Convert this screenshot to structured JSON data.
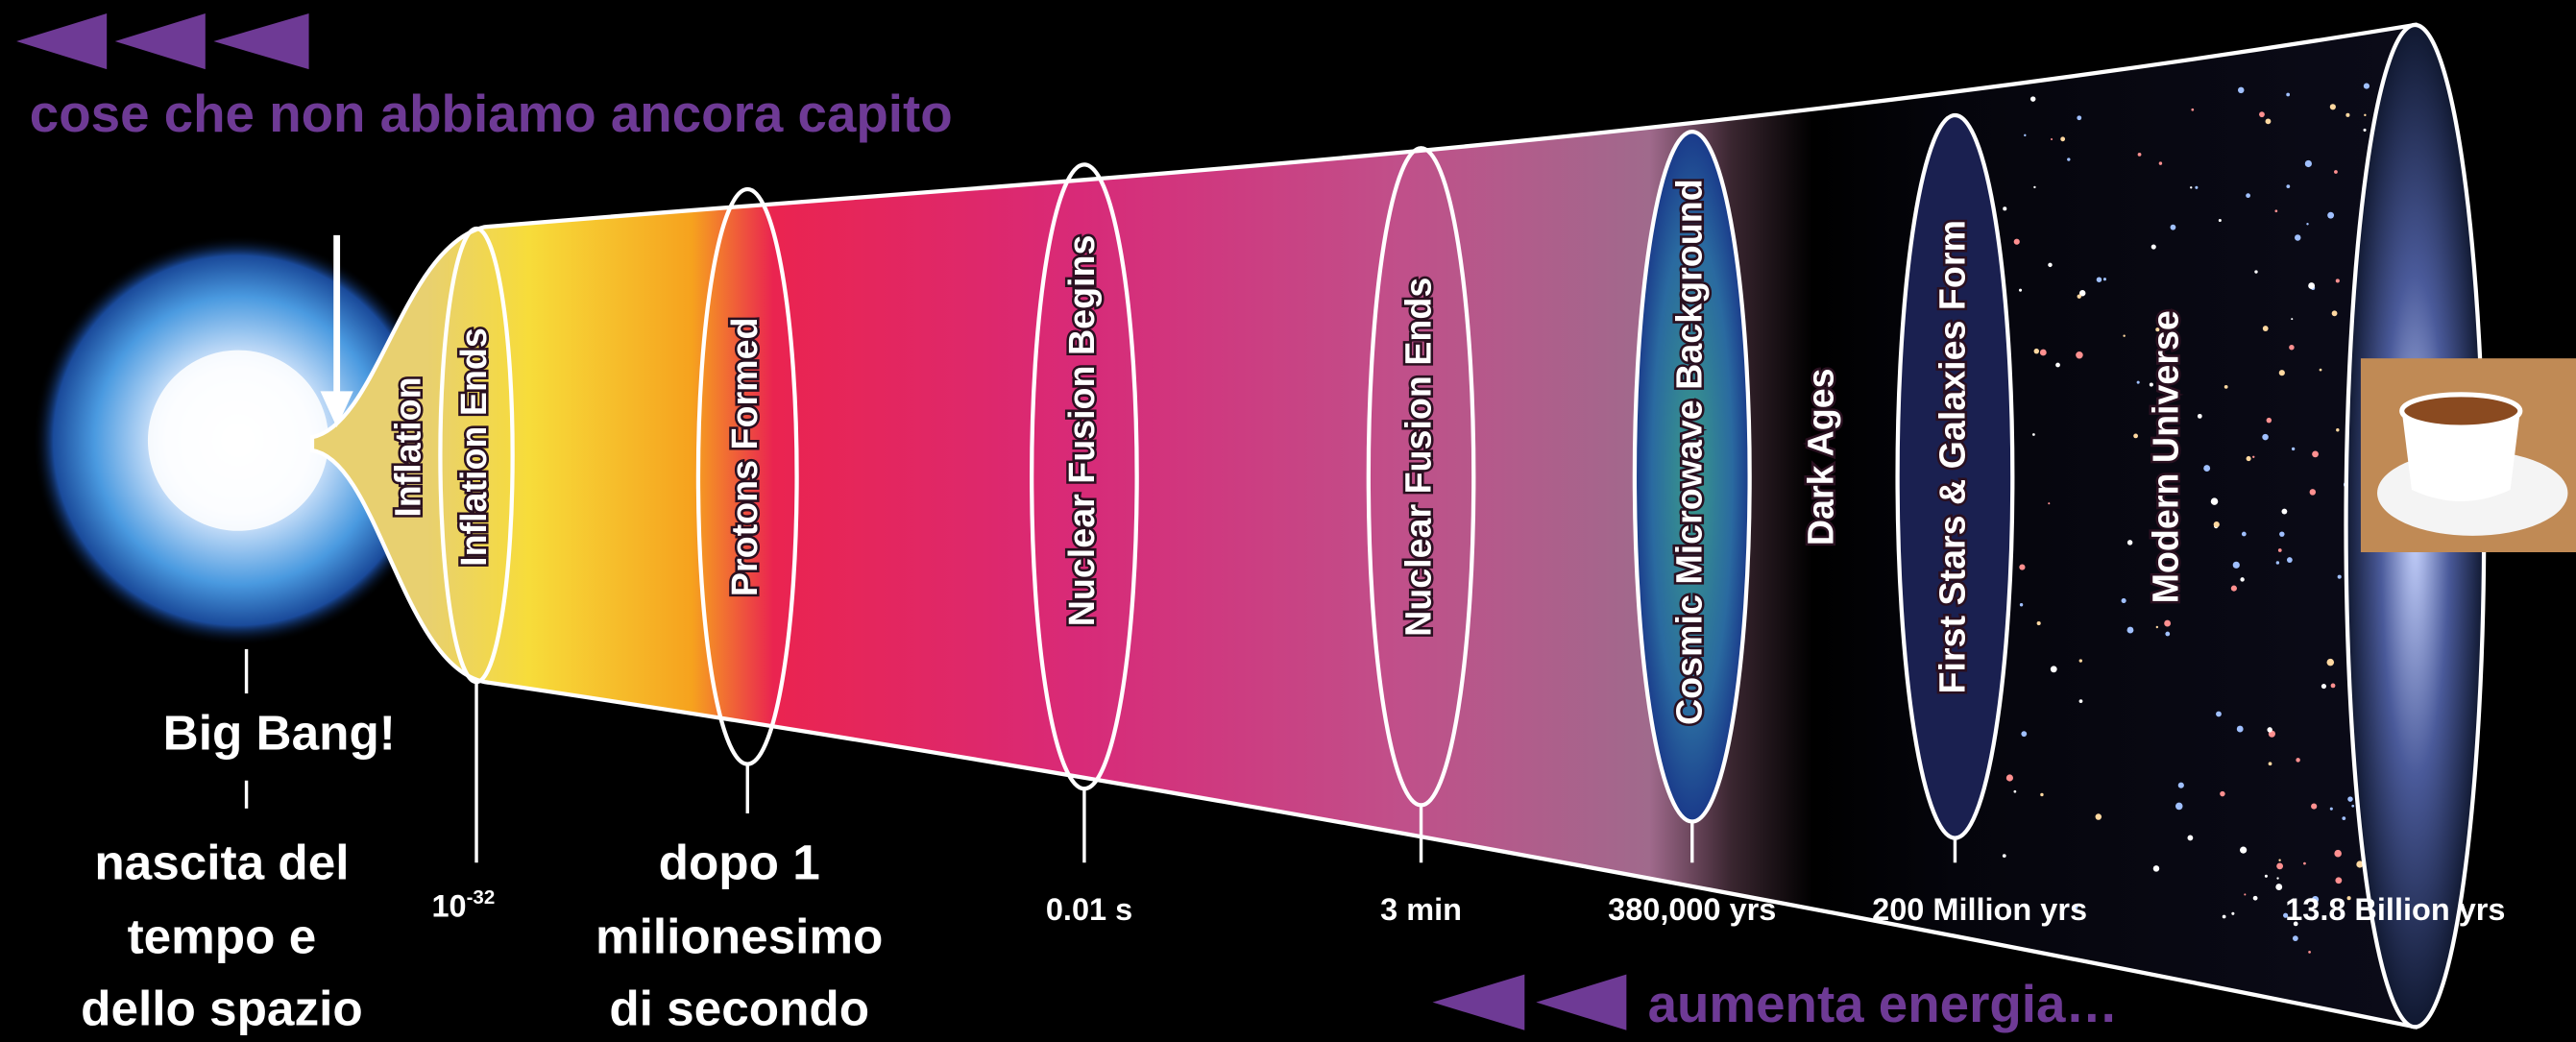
{
  "header": {
    "title": "cose che non abbiamo ancora capito"
  },
  "annotations": {
    "big_bang": "Big Bang!",
    "birth": [
      "nascita del",
      "tempo e",
      "dello spazio"
    ],
    "after": [
      "dopo 1",
      "milionesimo",
      "di secondo"
    ],
    "energy": "aumenta energia…"
  },
  "stages": [
    "Inflation",
    "Inflation Ends",
    "Protons Formed",
    "Nuclear Fusion Begins",
    "Nuclear Fusion Ends",
    "Cosmic Microwave Background",
    "Dark Ages",
    "First Stars & Galaxies Form",
    "Modern Universe"
  ],
  "timeline": [
    {
      "base": "10",
      "exponent": "-32"
    },
    "0.01 s",
    "3 min",
    "380,000 yrs",
    "200 Million yrs",
    "13.8 Billion yrs"
  ]
}
